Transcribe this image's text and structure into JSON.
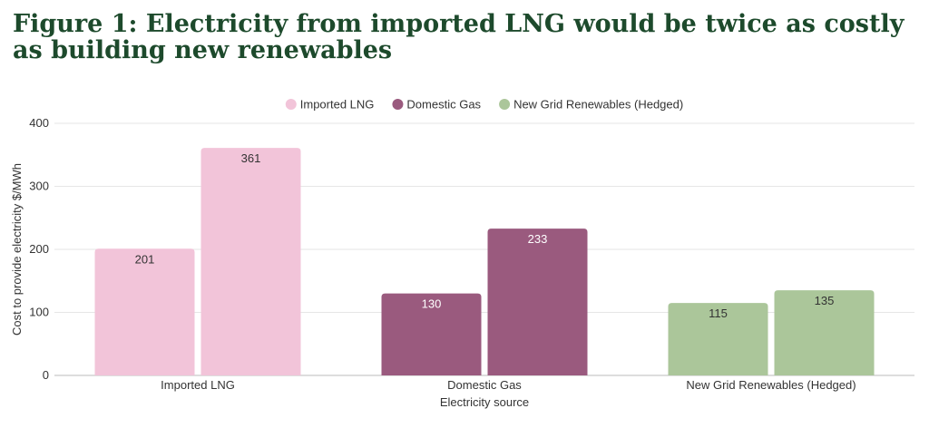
{
  "title": "Figure 1: Electricity from imported LNG would be twice as costly as building new renewables",
  "chart_data": {
    "type": "bar",
    "categories": [
      "Imported LNG",
      "Domestic Gas",
      "New Grid Renewables (Hedged)"
    ],
    "bars": [
      {
        "category": "Imported LNG",
        "values": [
          201,
          361
        ]
      },
      {
        "category": "Domestic Gas",
        "values": [
          130,
          233
        ]
      },
      {
        "category": "New Grid Renewables (Hedged)",
        "values": [
          115,
          135
        ]
      }
    ],
    "legend": [
      "Imported LNG",
      "Domestic Gas",
      "New Grid Renewables (Hedged)"
    ],
    "legend_position": "top-center",
    "colors": [
      "#f2c4d9",
      "#9a5a7e",
      "#abc69a"
    ],
    "label_colors": [
      "#333333",
      "#ffffff",
      "#333333"
    ],
    "xlabel": "Electricity source",
    "ylabel": "Cost to provide electricity $/MWh",
    "ylim": [
      0,
      400
    ],
    "yticks": [
      0,
      100,
      200,
      300,
      400
    ],
    "grid": true
  }
}
